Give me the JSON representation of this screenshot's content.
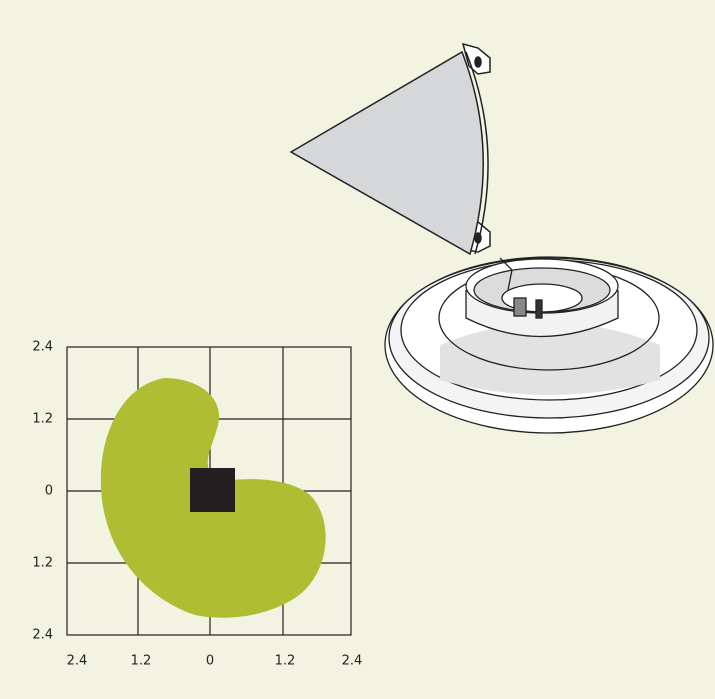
{
  "plot": {
    "y_labels": [
      "2.4",
      "1.2",
      "0",
      "1.2",
      "2.4"
    ],
    "x_labels": [
      "2.4",
      "1.2",
      "0",
      "1.2",
      "2.4"
    ]
  }
}
